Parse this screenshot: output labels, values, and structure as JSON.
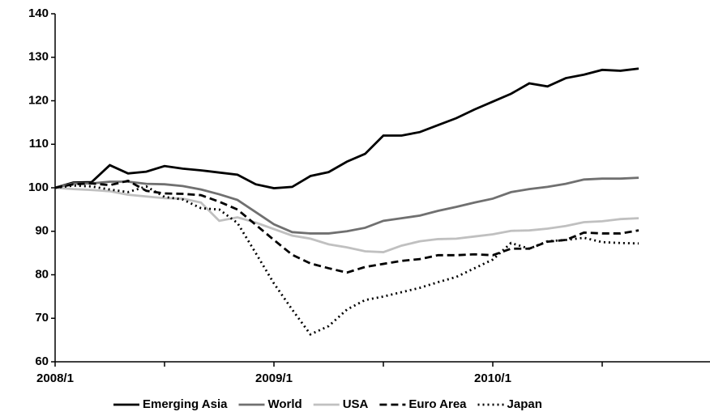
{
  "chart_data": {
    "type": "line",
    "categories": [
      "2008/1",
      null,
      null,
      null,
      null,
      null,
      null,
      null,
      null,
      null,
      null,
      null,
      "2009/1",
      null,
      null,
      null,
      null,
      null,
      null,
      null,
      null,
      null,
      null,
      null,
      "2010/1",
      null,
      null,
      null,
      null,
      null,
      null,
      null,
      null
    ],
    "series": [
      {
        "name": "Emerging Asia",
        "color": "#000000",
        "dash": "solid",
        "values": [
          100,
          101.2,
          101.3,
          105.2,
          103.3,
          103.7,
          105,
          104.4,
          104,
          103.5,
          103,
          100.8,
          99.9,
          100.2,
          102.7,
          103.6,
          106,
          107.8,
          112,
          112,
          112.8,
          114.4,
          116,
          118,
          119.8,
          121.6,
          124,
          123.3,
          125.2,
          126,
          127.1,
          126.9,
          127.4
        ]
      },
      {
        "name": "World",
        "color": "#707070",
        "dash": "solid",
        "values": [
          100,
          101,
          101,
          101.4,
          101.4,
          100.9,
          100.8,
          100.4,
          99.6,
          98.5,
          97.2,
          94.4,
          91.6,
          89.8,
          89.5,
          89.5,
          90,
          90.8,
          92.4,
          93,
          93.6,
          94.7,
          95.6,
          96.6,
          97.5,
          99,
          99.7,
          100.2,
          100.9,
          101.9,
          102.1,
          102.1,
          102.3
        ]
      },
      {
        "name": "USA",
        "color": "#c0c0c0",
        "dash": "solid",
        "values": [
          100,
          99.7,
          99.5,
          99.2,
          98.4,
          98,
          97.6,
          97.5,
          96.6,
          92.4,
          93.2,
          92,
          90.5,
          89,
          88.3,
          87,
          86.3,
          85.4,
          85.2,
          86.7,
          87.7,
          88.2,
          88.3,
          88.8,
          89.3,
          90.1,
          90.2,
          90.6,
          91.2,
          92.1,
          92.3,
          92.8,
          93
        ]
      },
      {
        "name": "Euro Area",
        "color": "#000000",
        "dash": "dashed",
        "values": [
          100,
          100.8,
          101,
          100.6,
          101.6,
          99.3,
          98.7,
          98.6,
          98.3,
          96.8,
          95,
          91.5,
          88,
          84.6,
          82.6,
          81.5,
          80.5,
          81.8,
          82.5,
          83.2,
          83.6,
          84.5,
          84.5,
          84.7,
          84.5,
          86,
          86,
          87.6,
          88,
          89.7,
          89.5,
          89.5,
          90.2
        ]
      },
      {
        "name": "Japan",
        "color": "#000000",
        "dash": "dotted",
        "values": [
          100,
          100.5,
          100.3,
          99.6,
          99,
          100.3,
          97.9,
          97.3,
          95.3,
          95,
          91.9,
          85,
          78,
          72,
          66.3,
          68.2,
          72,
          74.2,
          75,
          76,
          77,
          78.3,
          79.5,
          81.5,
          83.5,
          87.3,
          86,
          87.7,
          88,
          88.5,
          87.5,
          87.3,
          87.2
        ]
      }
    ],
    "ylim": [
      60,
      140
    ],
    "yticks": [
      60,
      70,
      80,
      90,
      100,
      110,
      120,
      130,
      140
    ],
    "legend": "bottom"
  }
}
